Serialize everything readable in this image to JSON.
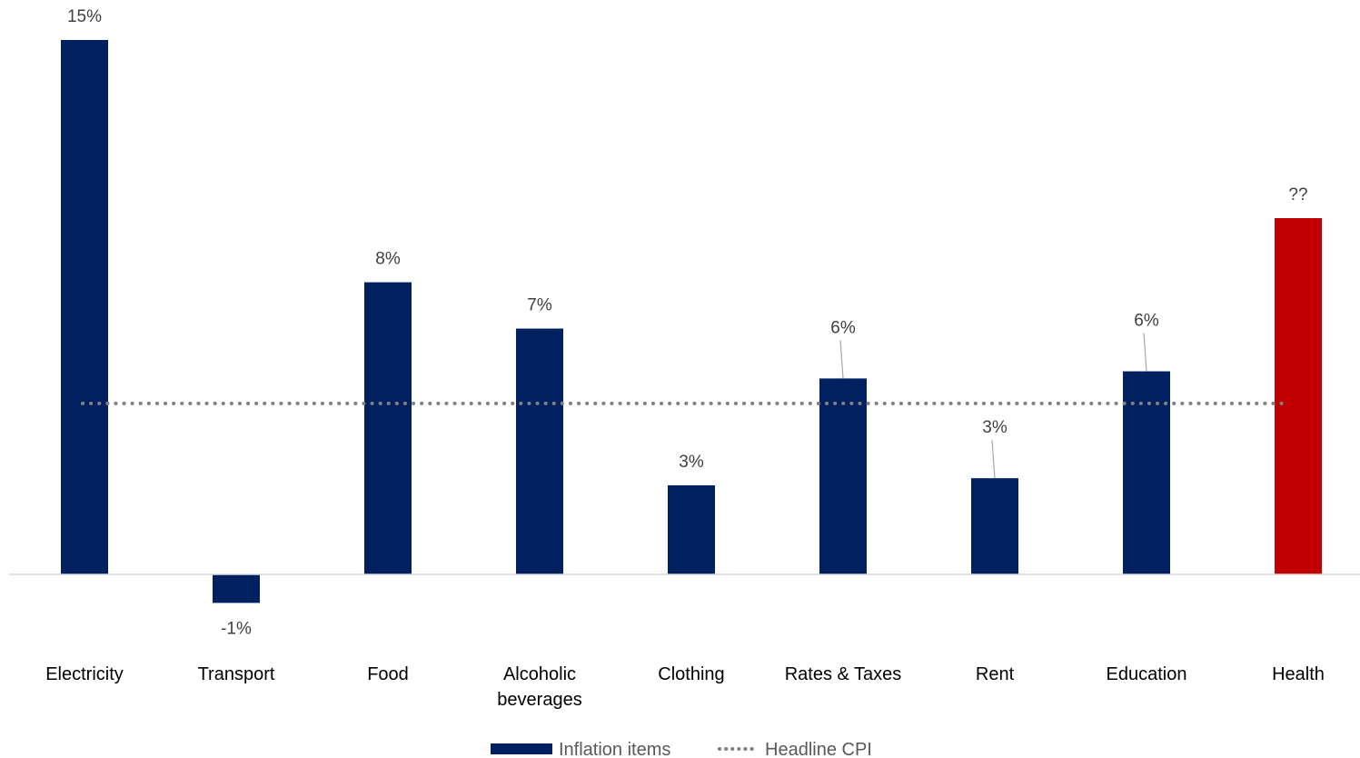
{
  "chart_data": {
    "type": "bar",
    "categories": [
      [
        "Electricity"
      ],
      [
        "Transport"
      ],
      [
        "Food"
      ],
      [
        "Alcoholic",
        "beverages"
      ],
      [
        "Clothing"
      ],
      [
        "Rates & Taxes"
      ],
      [
        "Rent"
      ],
      [
        "Education"
      ],
      [
        "Health"
      ]
    ],
    "values": [
      15,
      -0.8,
      8.2,
      6.9,
      2.5,
      5.5,
      2.7,
      5.7,
      10
    ],
    "data_labels": [
      "15%",
      "-1%",
      "8%",
      "7%",
      "3%",
      "6%",
      "3%",
      "6%",
      "??"
    ],
    "bar_colors": [
      "#002060",
      "#002060",
      "#002060",
      "#002060",
      "#002060",
      "#002060",
      "#002060",
      "#002060",
      "#c00000"
    ],
    "headline_cpi": 4.8,
    "ylim": [
      -1.5,
      15.5
    ],
    "legend": {
      "placement": "bottom",
      "items": [
        {
          "label": "Inflation items",
          "type": "bar",
          "color": "#002060"
        },
        {
          "label": "Headline CPI",
          "type": "dotted-line",
          "color": "#808080"
        }
      ]
    },
    "title": "",
    "xlabel": "",
    "ylabel": "",
    "grid": false
  }
}
